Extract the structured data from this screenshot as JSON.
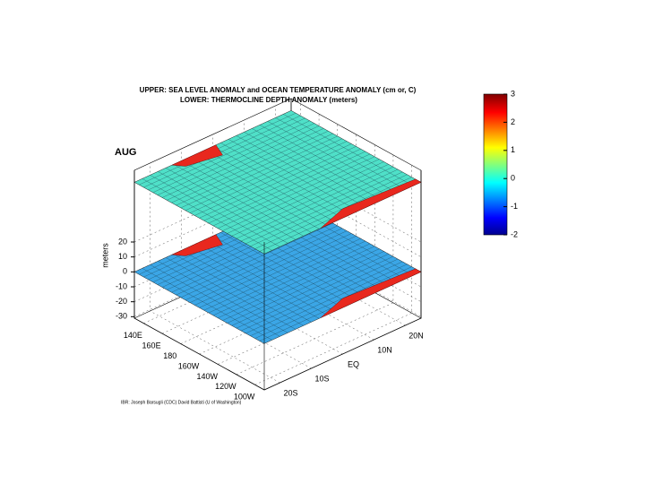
{
  "chart_data": {
    "type": "surface",
    "title": [
      "UPPER: SEA LEVEL ANOMALY and OCEAN TEMPERATURE ANOMALY (cm or, C)",
      "LOWER: THERMOCLINE DEPTH ANOMALY (meters)"
    ],
    "annotation": "AUG",
    "zlabel": "meters",
    "credit": "IBR: Joseph Barsugli (CDC) David Battisti (U of Washington)",
    "xlim": [
      130,
      270
    ],
    "xticks": [
      {
        "value": 140,
        "label": "140E"
      },
      {
        "value": 160,
        "label": "160E"
      },
      {
        "value": 180,
        "label": "180"
      },
      {
        "value": 200,
        "label": "160W"
      },
      {
        "value": 220,
        "label": "140W"
      },
      {
        "value": 240,
        "label": "120W"
      },
      {
        "value": 260,
        "label": "100W"
      }
    ],
    "ylim": [
      -25,
      25
    ],
    "yticks": [
      {
        "value": -20,
        "label": "20S"
      },
      {
        "value": -10,
        "label": "10S"
      },
      {
        "value": 0,
        "label": "EQ"
      },
      {
        "value": 10,
        "label": "10N"
      },
      {
        "value": 20,
        "label": "20N"
      }
    ],
    "zlim": [
      -31,
      68
    ],
    "zticks": [
      20,
      10,
      0,
      -10,
      -20,
      -30
    ],
    "clim": [
      -2,
      3
    ],
    "cticks": [
      3,
      2,
      1,
      0,
      -1,
      -2
    ]
  }
}
